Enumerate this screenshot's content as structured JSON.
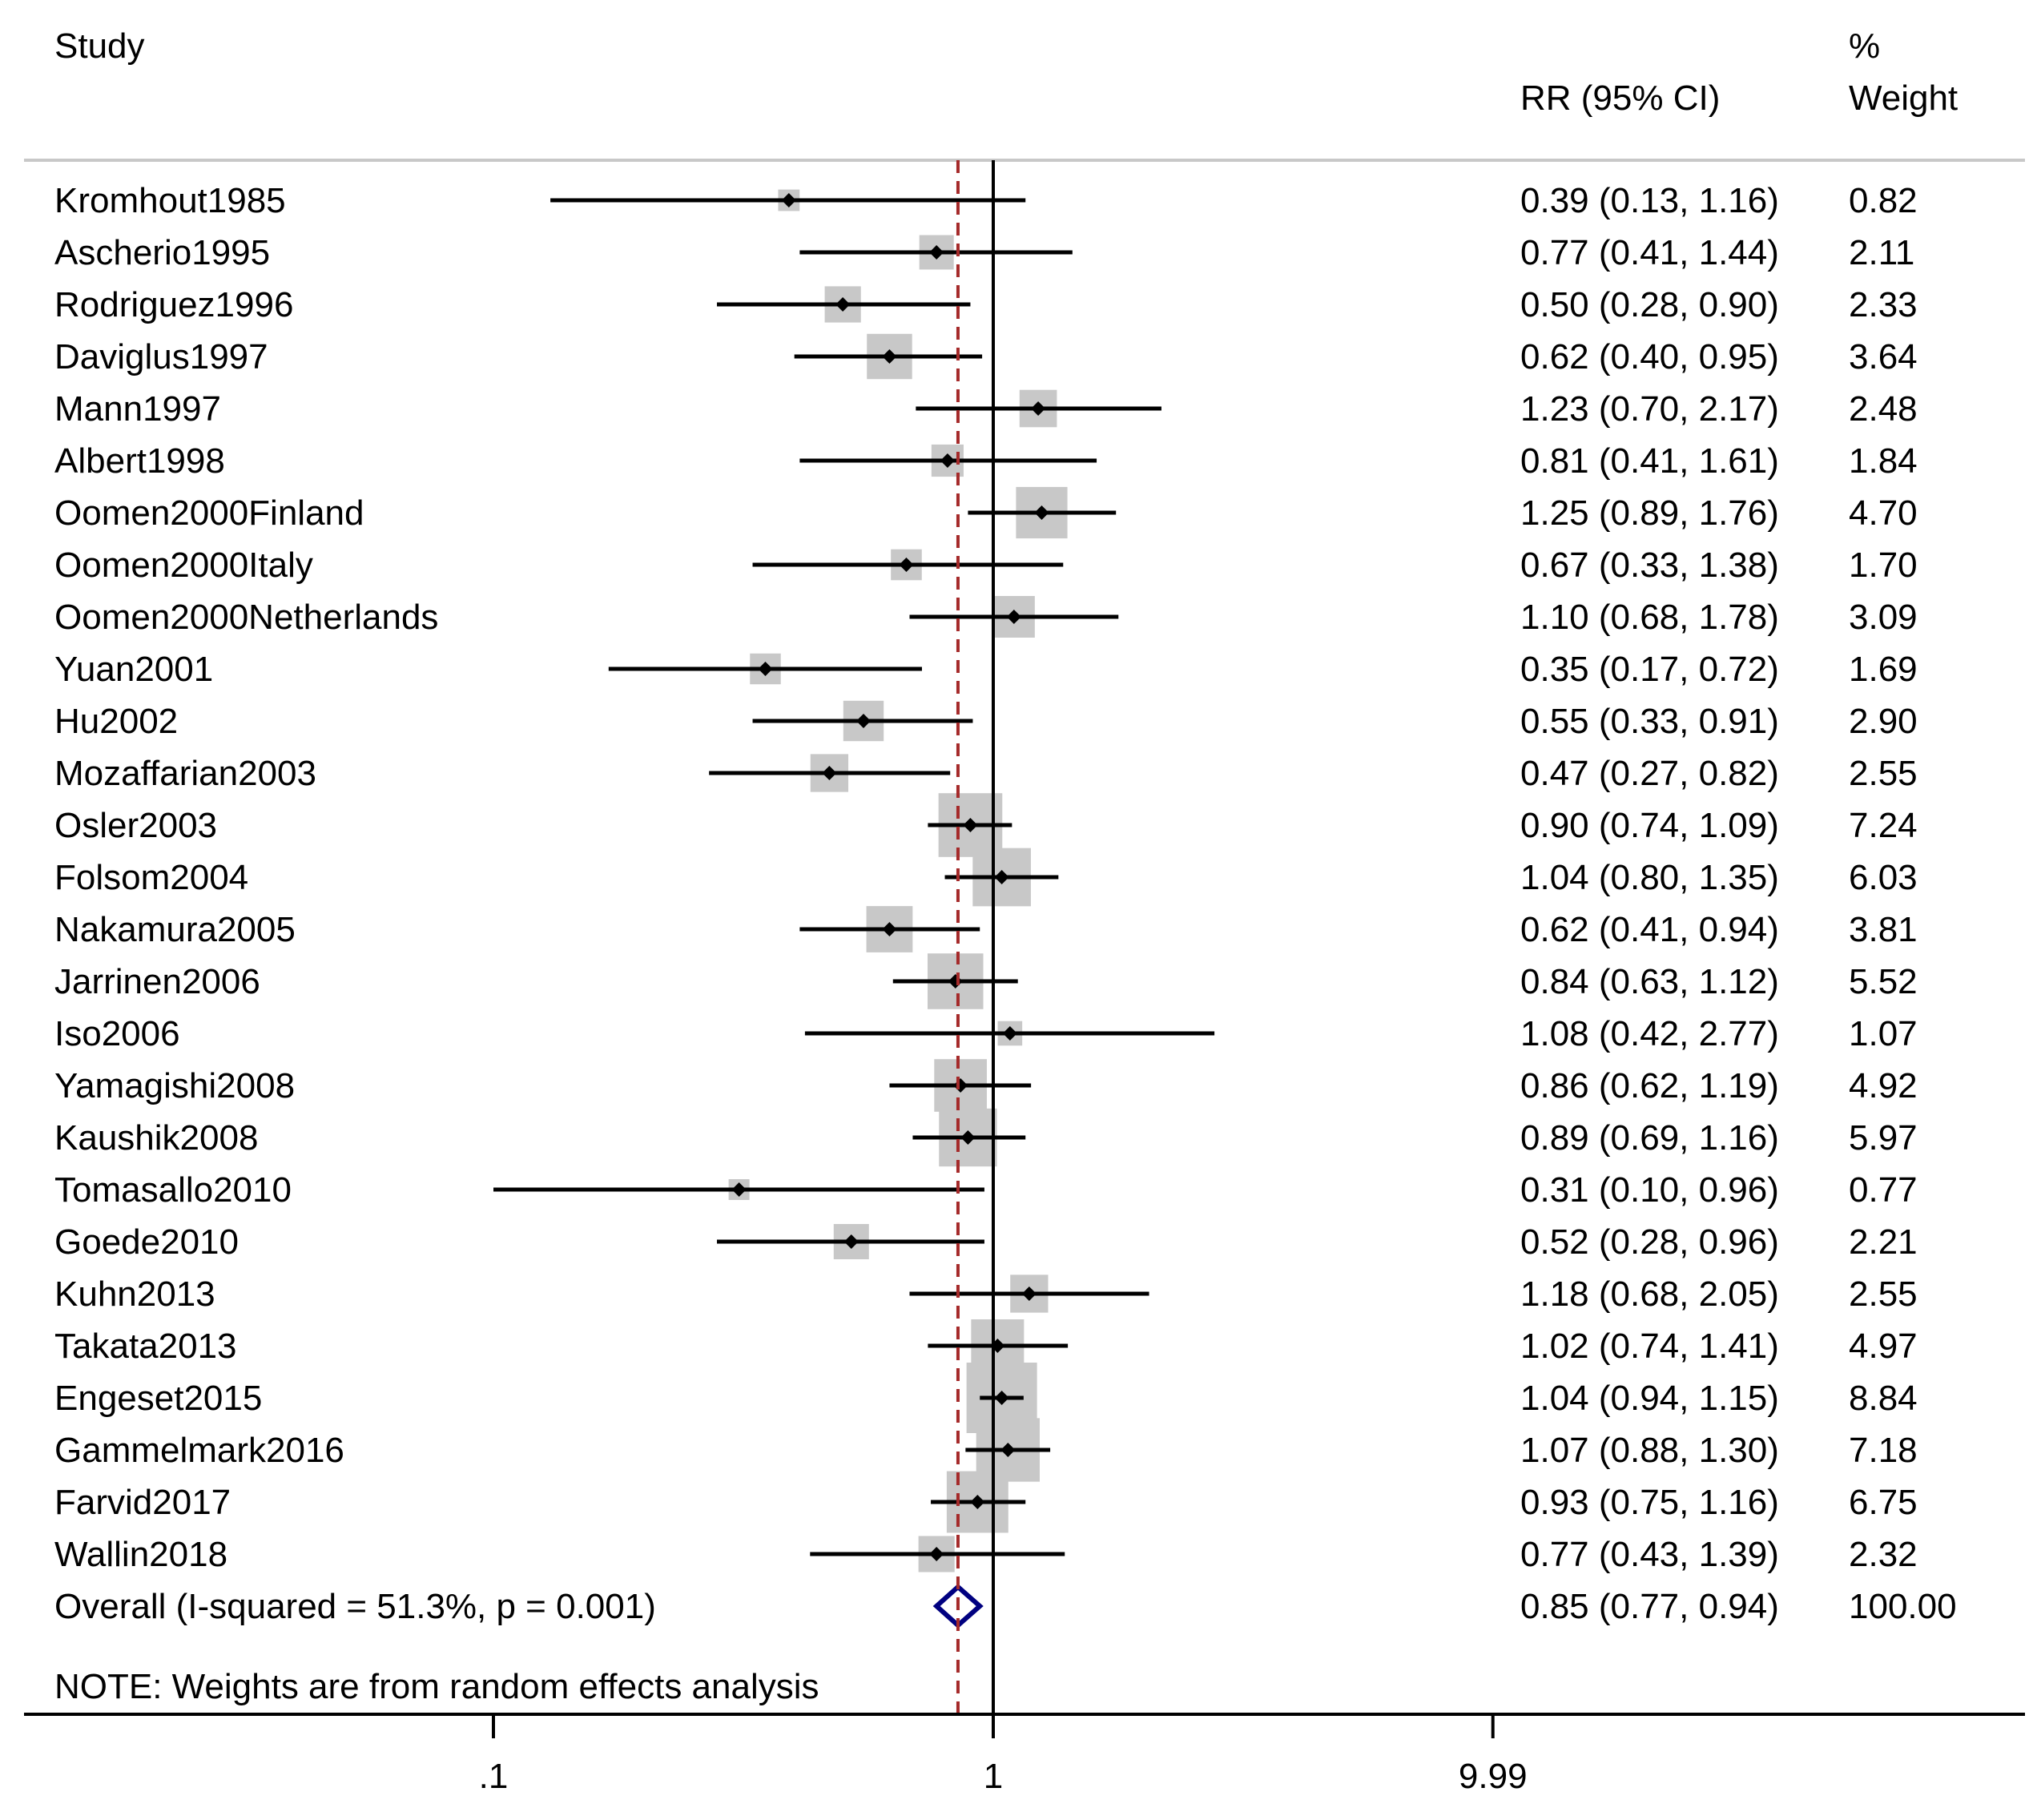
{
  "chart_data": {
    "type": "forest",
    "header": {
      "study_label": "Study",
      "effect_label": "RR (95% CI)",
      "weight_label_line1": "%",
      "weight_label_line2": "Weight"
    },
    "studies": [
      {
        "name": "Kromhout1985",
        "rr": 0.39,
        "lo": 0.13,
        "hi": 1.16,
        "ci_text": "0.39 (0.13, 1.16)",
        "weight": 0.82,
        "weight_text": "0.82"
      },
      {
        "name": "Ascherio1995",
        "rr": 0.77,
        "lo": 0.41,
        "hi": 1.44,
        "ci_text": "0.77 (0.41, 1.44)",
        "weight": 2.11,
        "weight_text": "2.11"
      },
      {
        "name": "Rodriguez1996",
        "rr": 0.5,
        "lo": 0.28,
        "hi": 0.9,
        "ci_text": "0.50 (0.28, 0.90)",
        "weight": 2.33,
        "weight_text": "2.33"
      },
      {
        "name": "Daviglus1997",
        "rr": 0.62,
        "lo": 0.4,
        "hi": 0.95,
        "ci_text": "0.62 (0.40, 0.95)",
        "weight": 3.64,
        "weight_text": "3.64"
      },
      {
        "name": "Mann1997",
        "rr": 1.23,
        "lo": 0.7,
        "hi": 2.17,
        "ci_text": "1.23 (0.70, 2.17)",
        "weight": 2.48,
        "weight_text": "2.48"
      },
      {
        "name": "Albert1998",
        "rr": 0.81,
        "lo": 0.41,
        "hi": 1.61,
        "ci_text": "0.81 (0.41, 1.61)",
        "weight": 1.84,
        "weight_text": "1.84"
      },
      {
        "name": "Oomen2000Finland",
        "rr": 1.25,
        "lo": 0.89,
        "hi": 1.76,
        "ci_text": "1.25 (0.89, 1.76)",
        "weight": 4.7,
        "weight_text": "4.70"
      },
      {
        "name": "Oomen2000Italy",
        "rr": 0.67,
        "lo": 0.33,
        "hi": 1.38,
        "ci_text": "0.67 (0.33, 1.38)",
        "weight": 1.7,
        "weight_text": "1.70"
      },
      {
        "name": "Oomen2000Netherlands",
        "rr": 1.1,
        "lo": 0.68,
        "hi": 1.78,
        "ci_text": "1.10 (0.68, 1.78)",
        "weight": 3.09,
        "weight_text": "3.09"
      },
      {
        "name": "Yuan2001",
        "rr": 0.35,
        "lo": 0.17,
        "hi": 0.72,
        "ci_text": "0.35 (0.17, 0.72)",
        "weight": 1.69,
        "weight_text": "1.69"
      },
      {
        "name": "Hu2002",
        "rr": 0.55,
        "lo": 0.33,
        "hi": 0.91,
        "ci_text": "0.55 (0.33, 0.91)",
        "weight": 2.9,
        "weight_text": "2.90"
      },
      {
        "name": "Mozaffarian2003",
        "rr": 0.47,
        "lo": 0.27,
        "hi": 0.82,
        "ci_text": "0.47 (0.27, 0.82)",
        "weight": 2.55,
        "weight_text": "2.55"
      },
      {
        "name": "Osler2003",
        "rr": 0.9,
        "lo": 0.74,
        "hi": 1.09,
        "ci_text": "0.90 (0.74, 1.09)",
        "weight": 7.24,
        "weight_text": "7.24"
      },
      {
        "name": "Folsom2004",
        "rr": 1.04,
        "lo": 0.8,
        "hi": 1.35,
        "ci_text": "1.04 (0.80, 1.35)",
        "weight": 6.03,
        "weight_text": "6.03"
      },
      {
        "name": "Nakamura2005",
        "rr": 0.62,
        "lo": 0.41,
        "hi": 0.94,
        "ci_text": "0.62 (0.41, 0.94)",
        "weight": 3.81,
        "weight_text": "3.81"
      },
      {
        "name": "Jarrinen2006",
        "rr": 0.84,
        "lo": 0.63,
        "hi": 1.12,
        "ci_text": "0.84 (0.63, 1.12)",
        "weight": 5.52,
        "weight_text": "5.52"
      },
      {
        "name": "Iso2006",
        "rr": 1.08,
        "lo": 0.42,
        "hi": 2.77,
        "ci_text": "1.08 (0.42, 2.77)",
        "weight": 1.07,
        "weight_text": "1.07"
      },
      {
        "name": "Yamagishi2008",
        "rr": 0.86,
        "lo": 0.62,
        "hi": 1.19,
        "ci_text": "0.86 (0.62, 1.19)",
        "weight": 4.92,
        "weight_text": "4.92"
      },
      {
        "name": "Kaushik2008",
        "rr": 0.89,
        "lo": 0.69,
        "hi": 1.16,
        "ci_text": "0.89 (0.69, 1.16)",
        "weight": 5.97,
        "weight_text": "5.97"
      },
      {
        "name": "Tomasallo2010",
        "rr": 0.31,
        "lo": 0.1,
        "hi": 0.96,
        "ci_text": "0.31 (0.10, 0.96)",
        "weight": 0.77,
        "weight_text": "0.77"
      },
      {
        "name": "Goede2010",
        "rr": 0.52,
        "lo": 0.28,
        "hi": 0.96,
        "ci_text": "0.52 (0.28, 0.96)",
        "weight": 2.21,
        "weight_text": "2.21"
      },
      {
        "name": "Kuhn2013",
        "rr": 1.18,
        "lo": 0.68,
        "hi": 2.05,
        "ci_text": "1.18 (0.68, 2.05)",
        "weight": 2.55,
        "weight_text": "2.55"
      },
      {
        "name": "Takata2013",
        "rr": 1.02,
        "lo": 0.74,
        "hi": 1.41,
        "ci_text": "1.02 (0.74, 1.41)",
        "weight": 4.97,
        "weight_text": "4.97"
      },
      {
        "name": "Engeset2015",
        "rr": 1.04,
        "lo": 0.94,
        "hi": 1.15,
        "ci_text": "1.04 (0.94, 1.15)",
        "weight": 8.84,
        "weight_text": "8.84"
      },
      {
        "name": "Gammelmark2016",
        "rr": 1.07,
        "lo": 0.88,
        "hi": 1.3,
        "ci_text": "1.07 (0.88, 1.30)",
        "weight": 7.18,
        "weight_text": "7.18"
      },
      {
        "name": "Farvid2017",
        "rr": 0.93,
        "lo": 0.75,
        "hi": 1.16,
        "ci_text": "0.93 (0.75, 1.16)",
        "weight": 6.75,
        "weight_text": "6.75"
      },
      {
        "name": "Wallin2018",
        "rr": 0.77,
        "lo": 0.43,
        "hi": 1.39,
        "ci_text": "0.77 (0.43, 1.39)",
        "weight": 2.32,
        "weight_text": "2.32"
      }
    ],
    "overall": {
      "label": "Overall  (I-squared = 51.3%, p = 0.001)",
      "rr": 0.85,
      "lo": 0.77,
      "hi": 0.94,
      "ci_text": "0.85 (0.77, 0.94)",
      "weight_text": "100.00"
    },
    "note": "NOTE: Weights are from random effects analysis",
    "x_axis": {
      "scale": "log",
      "ticks": [
        0.1,
        1,
        9.99
      ],
      "tick_labels": [
        ".1",
        "1",
        "9.99"
      ],
      "range": [
        0.1,
        9.99
      ]
    },
    "reference_line": 1,
    "colors": {
      "box": "#c8c8c8",
      "line": "#000000",
      "overall_line": "#a52a2a",
      "diamond": "#000080",
      "separator": "#c8c8c8"
    }
  }
}
